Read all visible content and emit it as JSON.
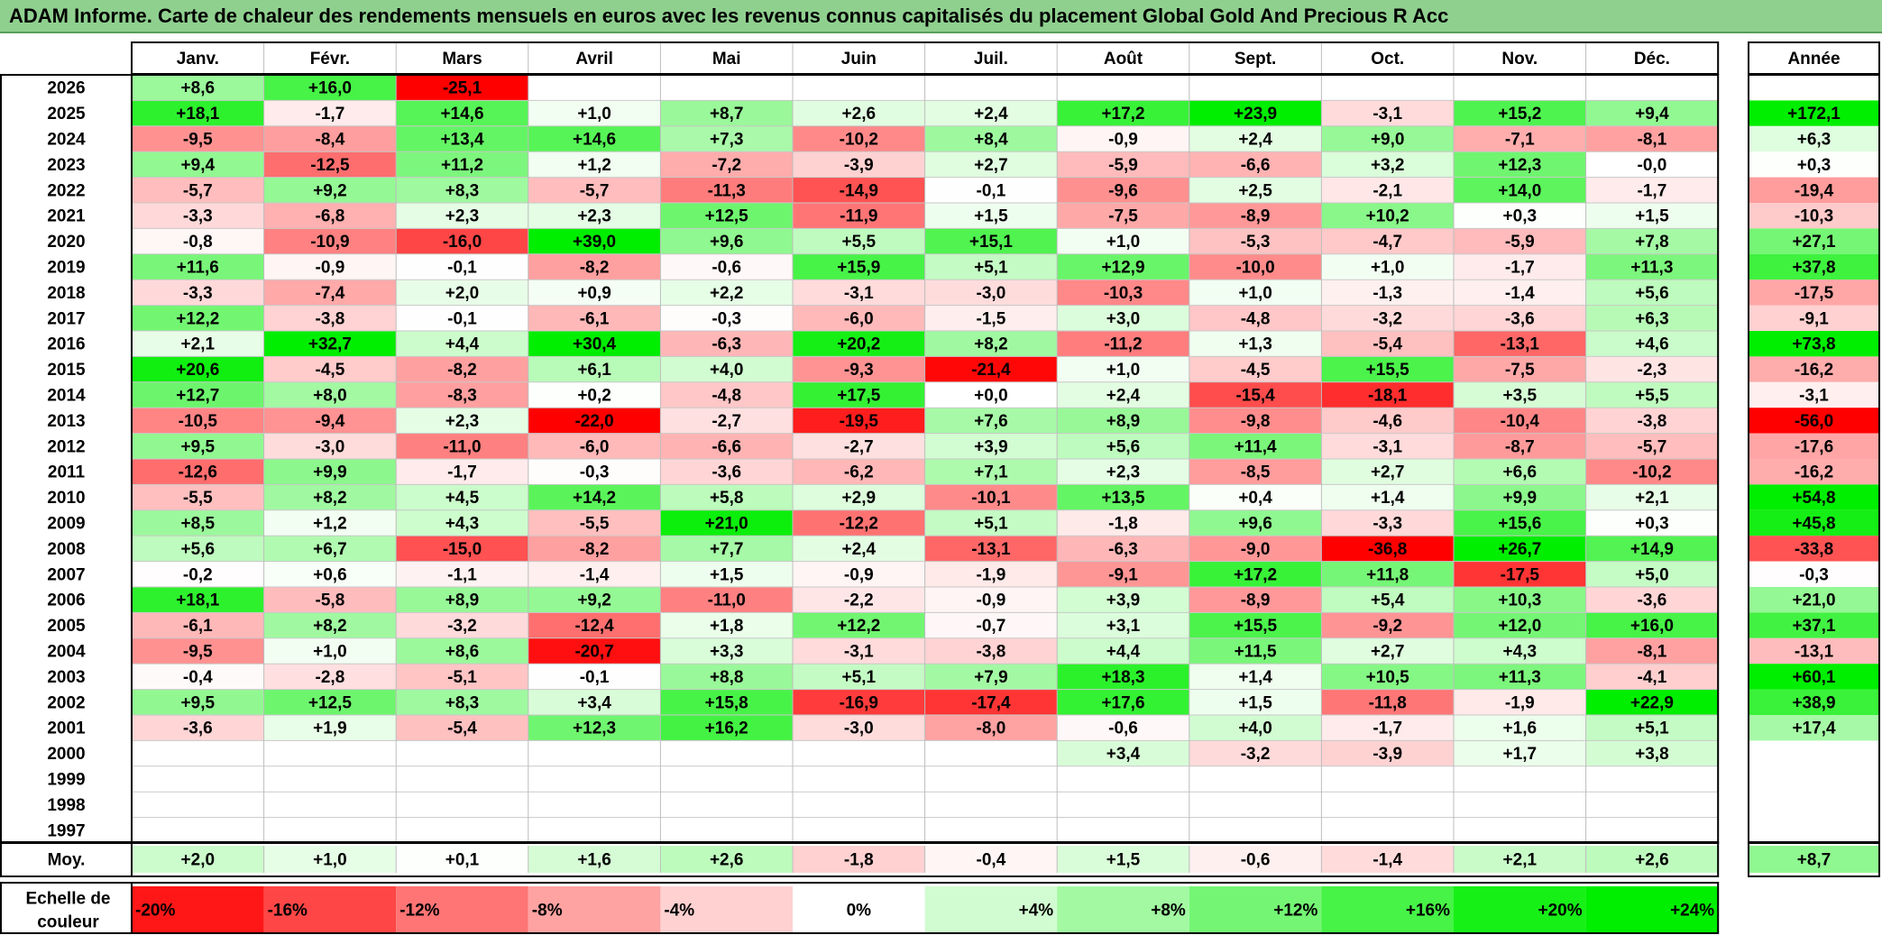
{
  "title": "ADAM Informe. Carte de chaleur des rendements mensuels en euros avec les revenus connus capitalisés du placement Global Gold And Precious R Acc",
  "chart_data": {
    "type": "heatmap",
    "title": "ADAM Informe. Carte de chaleur des rendements mensuels en euros avec les revenus connus capitalisés du placement Global Gold And Precious R Acc",
    "months": [
      "Janv.",
      "Févr.",
      "Mars",
      "Avril",
      "Mai",
      "Juin",
      "Juil.",
      "Août",
      "Sept.",
      "Oct.",
      "Nov.",
      "Déc."
    ],
    "year_header": "Année",
    "rows": [
      {
        "year": "2026",
        "values": [
          "+8,6",
          "+16,0",
          "-25,1",
          "",
          "",
          "",
          "",
          "",
          "",
          "",
          "",
          ""
        ],
        "annual": ""
      },
      {
        "year": "2025",
        "values": [
          "+18,1",
          "-1,7",
          "+14,6",
          "+1,0",
          "+8,7",
          "+2,6",
          "+2,4",
          "+17,2",
          "+23,9",
          "-3,1",
          "+15,2",
          "+9,4"
        ],
        "annual": "+172,1"
      },
      {
        "year": "2024",
        "values": [
          "-9,5",
          "-8,4",
          "+13,4",
          "+14,6",
          "+7,3",
          "-10,2",
          "+8,4",
          "-0,9",
          "+2,4",
          "+9,0",
          "-7,1",
          "-8,1"
        ],
        "annual": "+6,3"
      },
      {
        "year": "2023",
        "values": [
          "+9,4",
          "-12,5",
          "+11,2",
          "+1,2",
          "-7,2",
          "-3,9",
          "+2,7",
          "-5,9",
          "-6,6",
          "+3,2",
          "+12,3",
          "-0,0"
        ],
        "annual": "+0,3"
      },
      {
        "year": "2022",
        "values": [
          "-5,7",
          "+9,2",
          "+8,3",
          "-5,7",
          "-11,3",
          "-14,9",
          "-0,1",
          "-9,6",
          "+2,5",
          "-2,1",
          "+14,0",
          "-1,7"
        ],
        "annual": "-19,4"
      },
      {
        "year": "2021",
        "values": [
          "-3,3",
          "-6,8",
          "+2,3",
          "+2,3",
          "+12,5",
          "-11,9",
          "+1,5",
          "-7,5",
          "-8,9",
          "+10,2",
          "+0,3",
          "+1,5"
        ],
        "annual": "-10,3"
      },
      {
        "year": "2020",
        "values": [
          "-0,8",
          "-10,9",
          "-16,0",
          "+39,0",
          "+9,6",
          "+5,5",
          "+15,1",
          "+1,0",
          "-5,3",
          "-4,7",
          "-5,9",
          "+7,8"
        ],
        "annual": "+27,1"
      },
      {
        "year": "2019",
        "values": [
          "+11,6",
          "-0,9",
          "-0,1",
          "-8,2",
          "-0,6",
          "+15,9",
          "+5,1",
          "+12,9",
          "-10,0",
          "+1,0",
          "-1,7",
          "+11,3"
        ],
        "annual": "+37,8"
      },
      {
        "year": "2018",
        "values": [
          "-3,3",
          "-7,4",
          "+2,0",
          "+0,9",
          "+2,2",
          "-3,1",
          "-3,0",
          "-10,3",
          "+1,0",
          "-1,3",
          "-1,4",
          "+5,6"
        ],
        "annual": "-17,5"
      },
      {
        "year": "2017",
        "values": [
          "+12,2",
          "-3,8",
          "-0,1",
          "-6,1",
          "-0,3",
          "-6,0",
          "-1,5",
          "+3,0",
          "-4,8",
          "-3,2",
          "-3,6",
          "+6,3"
        ],
        "annual": "-9,1"
      },
      {
        "year": "2016",
        "values": [
          "+2,1",
          "+32,7",
          "+4,4",
          "+30,4",
          "-6,3",
          "+20,2",
          "+8,2",
          "-11,2",
          "+1,3",
          "-5,4",
          "-13,1",
          "+4,6"
        ],
        "annual": "+73,8"
      },
      {
        "year": "2015",
        "values": [
          "+20,6",
          "-4,5",
          "-8,2",
          "+6,1",
          "+4,0",
          "-9,3",
          "-21,4",
          "+1,0",
          "-4,5",
          "+15,5",
          "-7,5",
          "-2,3"
        ],
        "annual": "-16,2"
      },
      {
        "year": "2014",
        "values": [
          "+12,7",
          "+8,0",
          "-8,3",
          "+0,2",
          "-4,8",
          "+17,5",
          "+0,0",
          "+2,4",
          "-15,4",
          "-18,1",
          "+3,5",
          "+5,5"
        ],
        "annual": "-3,1"
      },
      {
        "year": "2013",
        "values": [
          "-10,5",
          "-9,4",
          "+2,3",
          "-22,0",
          "-2,7",
          "-19,5",
          "+7,6",
          "+8,9",
          "-9,8",
          "-4,6",
          "-10,4",
          "-3,8"
        ],
        "annual": "-56,0"
      },
      {
        "year": "2012",
        "values": [
          "+9,5",
          "-3,0",
          "-11,0",
          "-6,0",
          "-6,6",
          "-2,7",
          "+3,9",
          "+5,6",
          "+11,4",
          "-3,1",
          "-8,7",
          "-5,7"
        ],
        "annual": "-17,6"
      },
      {
        "year": "2011",
        "values": [
          "-12,6",
          "+9,9",
          "-1,7",
          "-0,3",
          "-3,6",
          "-6,2",
          "+7,1",
          "+2,3",
          "-8,5",
          "+2,7",
          "+6,6",
          "-10,2"
        ],
        "annual": "-16,2"
      },
      {
        "year": "2010",
        "values": [
          "-5,5",
          "+8,2",
          "+4,5",
          "+14,2",
          "+5,8",
          "+2,9",
          "-10,1",
          "+13,5",
          "+0,4",
          "+1,4",
          "+9,9",
          "+2,1"
        ],
        "annual": "+54,8"
      },
      {
        "year": "2009",
        "values": [
          "+8,5",
          "+1,2",
          "+4,3",
          "-5,5",
          "+21,0",
          "-12,2",
          "+5,1",
          "-1,8",
          "+9,6",
          "-3,3",
          "+15,6",
          "+0,3"
        ],
        "annual": "+45,8"
      },
      {
        "year": "2008",
        "values": [
          "+5,6",
          "+6,7",
          "-15,0",
          "-8,2",
          "+7,7",
          "+2,4",
          "-13,1",
          "-6,3",
          "-9,0",
          "-36,8",
          "+26,7",
          "+14,9"
        ],
        "annual": "-33,8"
      },
      {
        "year": "2007",
        "values": [
          "-0,2",
          "+0,6",
          "-1,1",
          "-1,4",
          "+1,5",
          "-0,9",
          "-1,9",
          "-9,1",
          "+17,2",
          "+11,8",
          "-17,5",
          "+5,0"
        ],
        "annual": "-0,3"
      },
      {
        "year": "2006",
        "values": [
          "+18,1",
          "-5,8",
          "+8,9",
          "+9,2",
          "-11,0",
          "-2,2",
          "-0,9",
          "+3,9",
          "-8,9",
          "+5,4",
          "+10,3",
          "-3,6"
        ],
        "annual": "+21,0"
      },
      {
        "year": "2005",
        "values": [
          "-6,1",
          "+8,2",
          "-3,2",
          "-12,4",
          "+1,8",
          "+12,2",
          "-0,7",
          "+3,1",
          "+15,5",
          "-9,2",
          "+12,0",
          "+16,0"
        ],
        "annual": "+37,1"
      },
      {
        "year": "2004",
        "values": [
          "-9,5",
          "+1,0",
          "+8,6",
          "-20,7",
          "+3,3",
          "-3,1",
          "-3,8",
          "+4,4",
          "+11,5",
          "+2,7",
          "+4,3",
          "-8,1"
        ],
        "annual": "-13,1"
      },
      {
        "year": "2003",
        "values": [
          "-0,4",
          "-2,8",
          "-5,1",
          "-0,1",
          "+8,8",
          "+5,1",
          "+7,9",
          "+18,3",
          "+1,4",
          "+10,5",
          "+11,3",
          "-4,1"
        ],
        "annual": "+60,1"
      },
      {
        "year": "2002",
        "values": [
          "+9,5",
          "+12,5",
          "+8,3",
          "+3,4",
          "+15,8",
          "-16,9",
          "-17,4",
          "+17,6",
          "+1,5",
          "-11,8",
          "-1,9",
          "+22,9"
        ],
        "annual": "+38,9"
      },
      {
        "year": "2001",
        "values": [
          "-3,6",
          "+1,9",
          "-5,4",
          "+12,3",
          "+16,2",
          "-3,0",
          "-8,0",
          "-0,6",
          "+4,0",
          "-1,7",
          "+1,6",
          "+5,1"
        ],
        "annual": "+17,4"
      },
      {
        "year": "2000",
        "values": [
          "",
          "",
          "",
          "",
          "",
          "",
          "",
          "+3,4",
          "-3,2",
          "-3,9",
          "+1,7",
          "+3,8"
        ],
        "annual": ""
      },
      {
        "year": "1999",
        "values": [
          "",
          "",
          "",
          "",
          "",
          "",
          "",
          "",
          "",
          "",
          "",
          ""
        ],
        "annual": ""
      },
      {
        "year": "1998",
        "values": [
          "",
          "",
          "",
          "",
          "",
          "",
          "",
          "",
          "",
          "",
          "",
          ""
        ],
        "annual": ""
      },
      {
        "year": "1997",
        "values": [
          "",
          "",
          "",
          "",
          "",
          "",
          "",
          "",
          "",
          "",
          "",
          ""
        ],
        "annual": ""
      }
    ],
    "average": {
      "label": "Moy.",
      "values": [
        "+2,0",
        "+1,0",
        "+0,1",
        "+1,6",
        "+2,6",
        "-1,8",
        "-0,4",
        "+1,5",
        "-0,6",
        "-1,4",
        "+2,1",
        "+2,6"
      ],
      "annual": "+8,7"
    },
    "color_scale": {
      "label_line1": "Echelle de",
      "label_line2": "couleur",
      "steps": [
        "-20%",
        "-16%",
        "-12%",
        "-8%",
        "-4%",
        "0%",
        "+4%",
        "+8%",
        "+12%",
        "+16%",
        "+20%",
        "+24%"
      ],
      "step_values": [
        -20,
        -16,
        -12,
        -8,
        -4,
        0,
        4,
        8,
        12,
        16,
        20,
        24
      ]
    },
    "colors": {
      "negative_max": "#ff0000",
      "neutral": "#ffffff",
      "positive_max": "#00ee00",
      "title_bar": "#8fd08f"
    }
  }
}
